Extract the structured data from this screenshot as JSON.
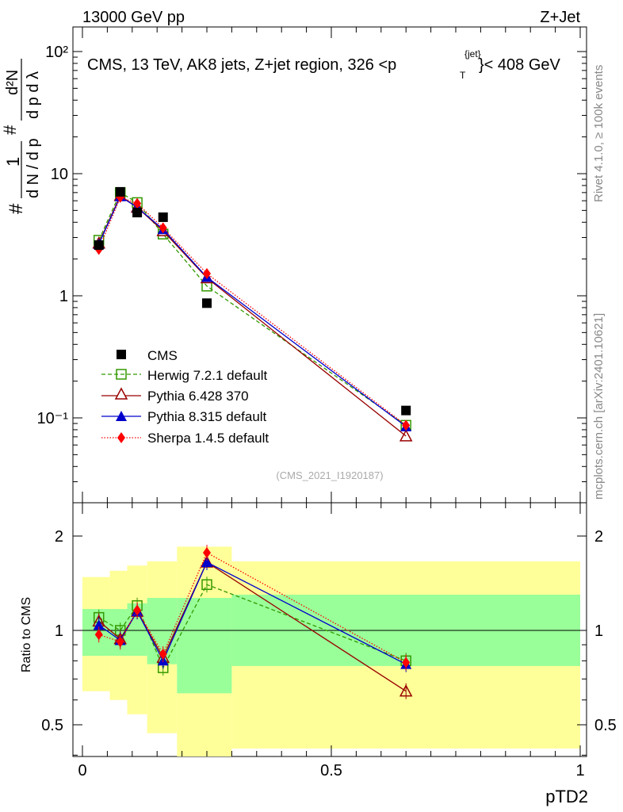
{
  "header": {
    "left": "13000 GeV pp",
    "right": "Z+Jet",
    "plot_title_main": "CMS, 13 TeV, AK8 jets, Z+jet region, 326 <p",
    "plot_title_sup": "{jet}",
    "plot_title_sub": "T",
    "plot_title_tail": "}< 408 GeV",
    "side_rivet": "Rivet 4.1.0, ≥ 100k events",
    "side_mcplots": "mcplots.cern.ch [arXiv:2401.10621]",
    "analysis_id": "(CMS_2021_I1920187)"
  },
  "axes": {
    "ylabel_top_hash": "#",
    "ylabel_top_frac": "1 / dN / d p_T",
    "ylabel_top_frac2": "# / d p_T",
    "ylabel_top_d2N": "d²N / d p_T dλ",
    "ylabel_bottom": "Ratio to CMS",
    "xlabel": "pTD2",
    "upper_ticks": [
      "10⁻¹",
      "1",
      "10",
      "10²"
    ],
    "lower_ticks": [
      "0.5",
      "1",
      "2"
    ],
    "x_ticks": [
      "0",
      "0.5",
      "1"
    ]
  },
  "legend": {
    "cms": "CMS",
    "herwig": "Herwig 7.2.1 default",
    "pythia6": "Pythia 6.428 370",
    "pythia8": "Pythia 8.315 default",
    "sherpa": "Sherpa 1.4.5 default"
  },
  "colors": {
    "cms": "#000000",
    "herwig": "#339900",
    "pythia6": "#990000",
    "pythia8": "#0000cc",
    "sherpa": "#ff0000",
    "band_inner": "#99ff99",
    "band_outer": "#ffff99"
  },
  "chart_data": {
    "type": "line",
    "title": "CMS, 13 TeV, AK8 jets, Z+jet region, 326 < pT(jet) < 408 GeV",
    "xlabel": "pTD2",
    "ylabel": "1/N dN/dλ",
    "xlim": [
      0,
      1
    ],
    "ylim_upper": [
      0.02,
      150
    ],
    "yscale_upper": "log",
    "ylim_lower": [
      0.35,
      2.3
    ],
    "yscale_lower": "log",
    "x": [
      0.033,
      0.076,
      0.11,
      0.162,
      0.25,
      0.65
    ],
    "bin_edges": [
      0,
      0.055,
      0.09,
      0.13,
      0.19,
      0.3,
      1.0
    ],
    "series": [
      {
        "name": "CMS",
        "values": [
          2.6,
          7.1,
          4.8,
          4.4,
          0.87,
          0.115
        ]
      },
      {
        "name": "Herwig 7.2.1 default",
        "values": [
          2.85,
          7.0,
          5.8,
          3.2,
          1.2,
          0.087
        ]
      },
      {
        "name": "Pythia 6.428 370",
        "values": [
          2.7,
          6.6,
          5.3,
          3.4,
          1.4,
          0.071
        ]
      },
      {
        "name": "Pythia 8.315 default",
        "values": [
          2.65,
          6.5,
          5.3,
          3.5,
          1.42,
          0.085
        ]
      },
      {
        "name": "Sherpa 1.4.5 default",
        "values": [
          2.4,
          6.4,
          5.7,
          3.6,
          1.52,
          0.087
        ]
      }
    ],
    "ratio_series": [
      {
        "name": "Herwig 7.2.1 default",
        "values": [
          1.1,
          1.0,
          1.2,
          0.76,
          1.4,
          0.8
        ]
      },
      {
        "name": "Pythia 6.428 370",
        "values": [
          1.07,
          0.94,
          1.15,
          0.82,
          1.65,
          0.64
        ]
      },
      {
        "name": "Pythia 8.315 default",
        "values": [
          1.04,
          0.93,
          1.15,
          0.8,
          1.65,
          0.78
        ]
      },
      {
        "name": "Sherpa 1.4.5 default",
        "values": [
          0.97,
          0.92,
          1.16,
          0.84,
          1.77,
          0.79
        ]
      }
    ],
    "band_inner": [
      [
        0.83,
        1.17
      ],
      [
        0.83,
        1.17
      ],
      [
        0.83,
        1.22
      ],
      [
        0.78,
        1.27
      ],
      [
        0.63,
        1.27
      ],
      [
        0.77,
        1.3
      ]
    ],
    "band_outer": [
      [
        0.64,
        1.48
      ],
      [
        0.6,
        1.55
      ],
      [
        0.54,
        1.61
      ],
      [
        0.47,
        1.66
      ],
      [
        0.32,
        1.85
      ],
      [
        0.42,
        1.66
      ]
    ]
  }
}
